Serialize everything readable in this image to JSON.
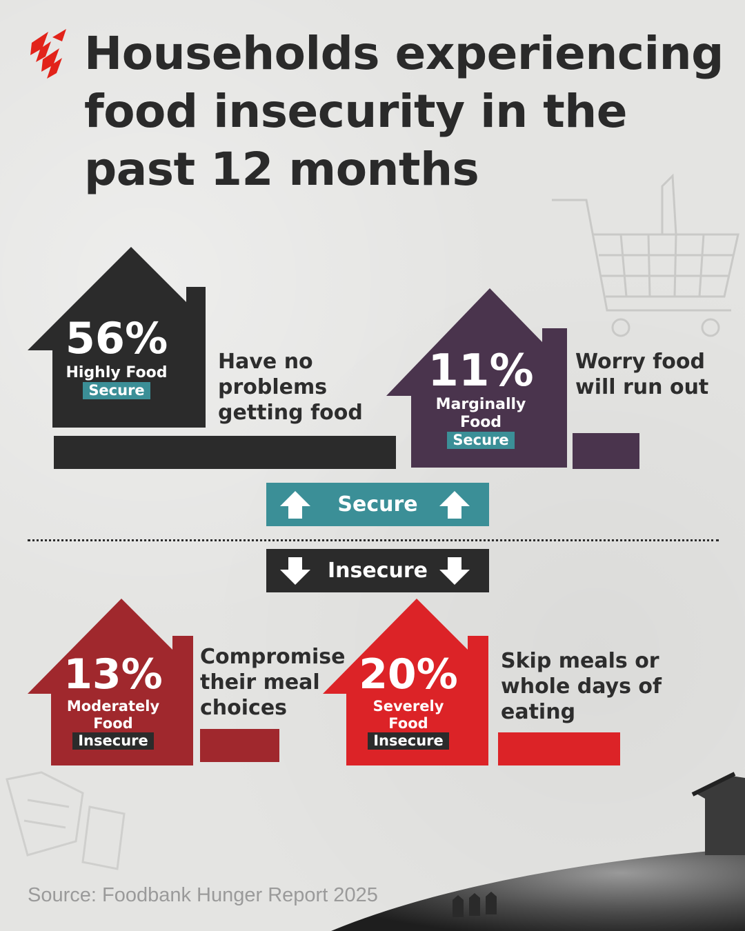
{
  "title": "Households experiencing food insecurity in the past 12 months",
  "colors": {
    "highly_secure": "#2b2b2b",
    "marginally_secure": "#4a344d",
    "moderately_insecure": "#a0282d",
    "severely_insecure": "#dc2327",
    "secure_accent": "#3b8f97",
    "logo_red": "#e2231a"
  },
  "logo": {
    "icon": "sbs-logo-icon"
  },
  "chart_data": {
    "type": "bar",
    "categories": [
      "Highly Food Secure",
      "Marginally Food Secure",
      "Moderately Food Insecure",
      "Severely Food Insecure"
    ],
    "values": [
      56,
      11,
      13,
      20
    ],
    "unit": "%"
  },
  "groups": [
    {
      "value_label": "56%",
      "status_line1": "Highly Food",
      "status_line2": "",
      "tag": "Secure",
      "description": "Have no problems getting food"
    },
    {
      "value_label": "11%",
      "status_line1": "Marginally",
      "status_line2": "Food",
      "tag": "Secure",
      "description": "Worry food will run out"
    },
    {
      "value_label": "13%",
      "status_line1": "Moderately",
      "status_line2": "Food",
      "tag": "Insecure",
      "description": "Compromise their meal choices"
    },
    {
      "value_label": "20%",
      "status_line1": "Severely",
      "status_line2": "Food",
      "tag": "Insecure",
      "description": "Skip meals or whole days of eating"
    }
  ],
  "divider_labels": {
    "secure": "Secure",
    "insecure": "Insecure"
  },
  "source": "Source: Foodbank Hunger Report 2025"
}
